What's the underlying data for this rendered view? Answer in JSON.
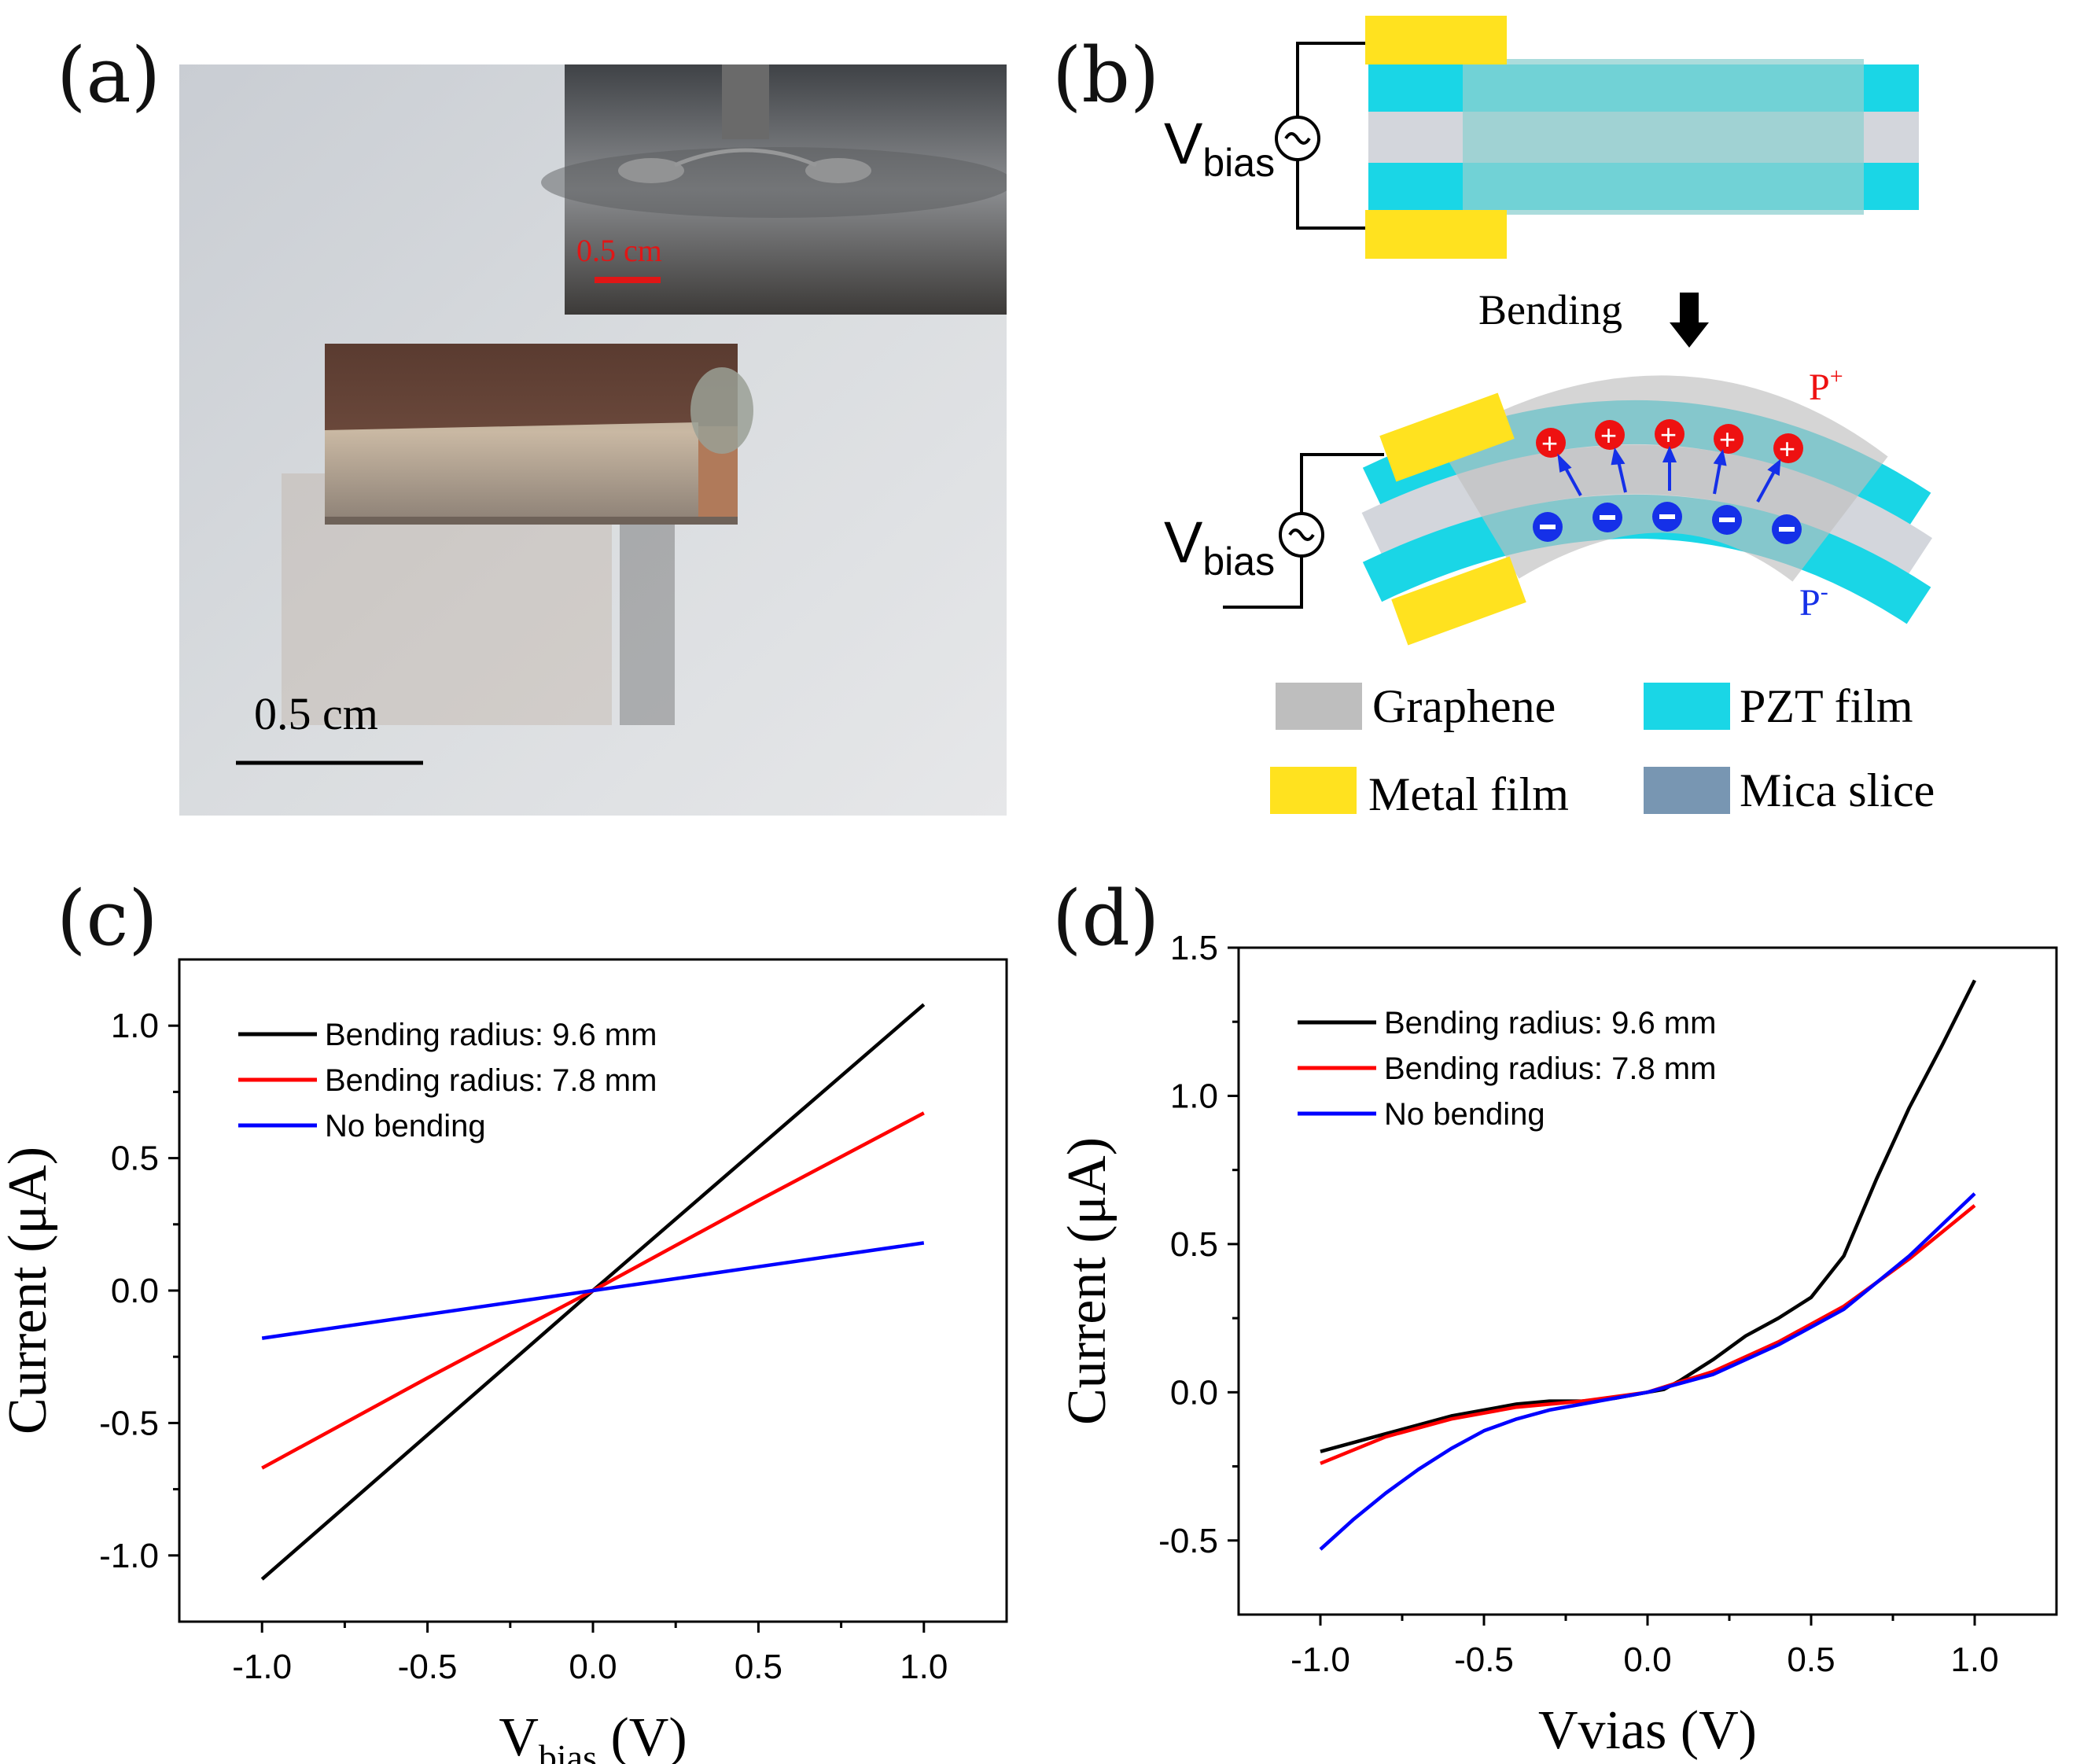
{
  "panels": {
    "a": {
      "label": "(a)",
      "scale_bar_main": "0.5 cm",
      "scale_bar_inset": "0.5 cm",
      "colors": {
        "inset_scale": "#e01616"
      }
    },
    "b": {
      "label": "(b)",
      "vbias_main": "V",
      "vbias_sub": "bias",
      "bending_label": "Bending",
      "p_plus": "P",
      "p_plus_sup": "+",
      "p_minus": "P",
      "p_minus_sup": "-",
      "legend": [
        {
          "label": "Graphene",
          "color": "#bebebe"
        },
        {
          "label": "PZT film",
          "color": "#1ad6e6"
        },
        {
          "label": "Metal film",
          "color": "#ffe21f"
        },
        {
          "label": "Mica slice",
          "color": "#7896b2"
        }
      ]
    },
    "c": {
      "label": "(c)"
    },
    "d": {
      "label": "(d)"
    }
  },
  "chart_data": [
    {
      "id": "c",
      "type": "line",
      "xlabel_main": "V",
      "xlabel_sub": "bias",
      "xlabel_unit": " (V)",
      "ylabel": "Current (μA)",
      "xlim": [
        -1.25,
        1.25
      ],
      "ylim": [
        -1.25,
        1.25
      ],
      "xticks": [
        -1.0,
        -0.5,
        0.0,
        0.5,
        1.0
      ],
      "xtick_labels": [
        "-1.0",
        "-0.5",
        "0.0",
        "0.5",
        "1.0"
      ],
      "yticks": [
        -1.0,
        -0.5,
        0.0,
        0.5,
        1.0
      ],
      "ytick_labels": [
        "-1.0",
        "-0.5",
        "0.0",
        "0.5",
        "1.0"
      ],
      "legend_position": "top-left",
      "series": [
        {
          "name": "Bending radius: 9.6 mm",
          "color": "#000000",
          "x": [
            -1.0,
            -0.5,
            0.0,
            0.5,
            1.0
          ],
          "y": [
            -1.09,
            -0.545,
            0.0,
            0.54,
            1.08
          ]
        },
        {
          "name": "Bending radius: 7.8 mm",
          "color": "#ff0000",
          "x": [
            -1.0,
            -0.5,
            0.0,
            0.5,
            1.0
          ],
          "y": [
            -0.67,
            -0.33,
            0.0,
            0.34,
            0.67
          ]
        },
        {
          "name": "No bending",
          "color": "#0000ff",
          "x": [
            -1.0,
            -0.5,
            0.0,
            0.5,
            1.0
          ],
          "y": [
            -0.18,
            -0.09,
            0.0,
            0.09,
            0.18
          ]
        }
      ]
    },
    {
      "id": "d",
      "type": "line",
      "xlabel_main": "Vvias (V)",
      "ylabel": "Current (μA)",
      "xlim": [
        -1.25,
        1.25
      ],
      "ylim": [
        -0.75,
        1.5
      ],
      "xticks": [
        -1.0,
        -0.5,
        0.0,
        0.5,
        1.0
      ],
      "xtick_labels": [
        "-1.0",
        "-0.5",
        "0.0",
        "0.5",
        "1.0"
      ],
      "yticks": [
        -0.5,
        0.0,
        0.5,
        1.0,
        1.5
      ],
      "ytick_labels": [
        "-0.5",
        "0.0",
        "0.5",
        "1.0",
        "1.5"
      ],
      "legend_position": "top-left",
      "series": [
        {
          "name": "Bending radius: 9.6 mm",
          "color": "#000000",
          "x": [
            -1.0,
            -0.8,
            -0.6,
            -0.4,
            -0.3,
            -0.2,
            -0.1,
            0.0,
            0.05,
            0.1,
            0.2,
            0.3,
            0.4,
            0.5,
            0.6,
            0.7,
            0.8,
            0.9,
            1.0
          ],
          "y": [
            -0.2,
            -0.14,
            -0.08,
            -0.04,
            -0.03,
            -0.03,
            -0.02,
            0.0,
            0.01,
            0.04,
            0.11,
            0.19,
            0.25,
            0.32,
            0.46,
            0.72,
            0.96,
            1.17,
            1.39
          ]
        },
        {
          "name": "Bending radius: 7.8 mm",
          "color": "#ff0000",
          "x": [
            -1.0,
            -0.8,
            -0.6,
            -0.4,
            -0.2,
            0.0,
            0.2,
            0.4,
            0.6,
            0.8,
            1.0
          ],
          "y": [
            -0.24,
            -0.15,
            -0.09,
            -0.05,
            -0.03,
            0.0,
            0.07,
            0.17,
            0.29,
            0.45,
            0.63
          ]
        },
        {
          "name": "No bending",
          "color": "#0000ff",
          "x": [
            -1.0,
            -0.9,
            -0.8,
            -0.7,
            -0.6,
            -0.5,
            -0.4,
            -0.3,
            -0.2,
            0.0,
            0.2,
            0.4,
            0.6,
            0.8,
            1.0
          ],
          "y": [
            -0.53,
            -0.43,
            -0.34,
            -0.26,
            -0.19,
            -0.13,
            -0.09,
            -0.06,
            -0.04,
            0.0,
            0.06,
            0.16,
            0.28,
            0.46,
            0.67
          ]
        }
      ]
    }
  ]
}
